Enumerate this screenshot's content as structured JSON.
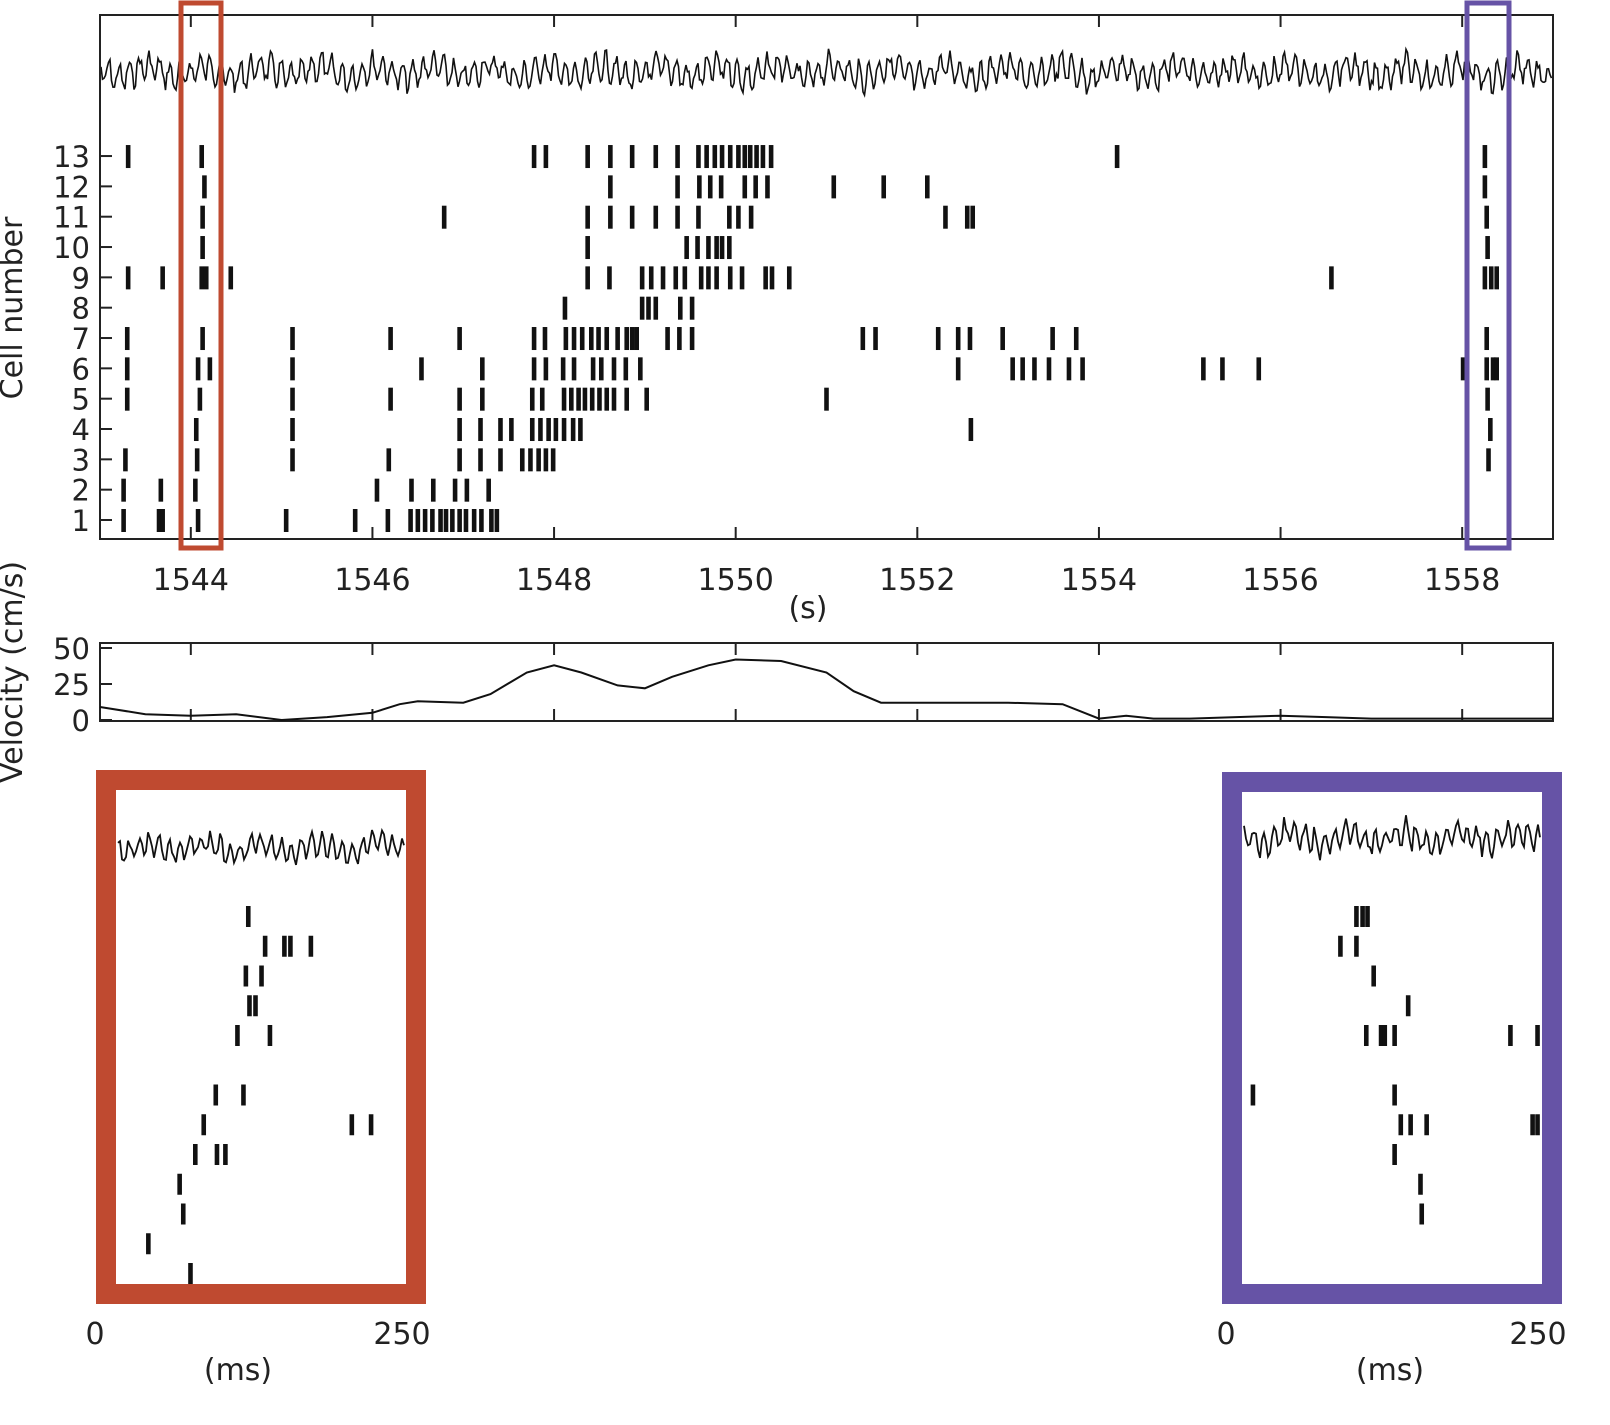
{
  "colors": {
    "red_window": "#bf4a30",
    "blue_window": "#6653a6",
    "ink": "#111111"
  },
  "chart_data": [
    {
      "type": "raster",
      "title": "",
      "ylabel": "Cell number",
      "xlabel": "(s)",
      "xlim": [
        1543,
        1559
      ],
      "xticks": [
        "1544",
        "1546",
        "1548",
        "1550",
        "1552",
        "1554",
        "1556",
        "1558"
      ],
      "yticks": [
        "1",
        "2",
        "3",
        "4",
        "5",
        "6",
        "7",
        "8",
        "9",
        "10",
        "11",
        "12",
        "13"
      ],
      "highlight_windows": [
        {
          "color": "red",
          "t_start": 1543.9,
          "t_end": 1544.35
        },
        {
          "color": "blue",
          "t_start": 1558.05,
          "t_end": 1558.5
        }
      ],
      "spikes": {
        "13": [
          1543.31,
          1544.12,
          1547.78,
          1547.91,
          1548.37,
          1548.62,
          1548.86,
          1549.12,
          1549.36,
          1549.59,
          1549.68,
          1549.77,
          1549.85,
          1549.94,
          1550.03,
          1550.1,
          1550.16,
          1550.23,
          1550.3,
          1550.39,
          1554.2,
          1558.25
        ],
        "12": [
          1544.15,
          1548.62,
          1549.36,
          1549.6,
          1549.72,
          1549.84,
          1550.1,
          1550.22,
          1550.35,
          1551.08,
          1551.63,
          1552.11,
          1558.25
        ],
        "11": [
          1544.13,
          1546.79,
          1548.37,
          1548.62,
          1548.86,
          1549.12,
          1549.36,
          1549.59,
          1549.93,
          1550.03,
          1550.17,
          1552.31,
          1552.55,
          1552.61,
          1558.27
        ],
        "10": [
          1544.13,
          1548.37,
          1549.46,
          1549.58,
          1549.7,
          1549.79,
          1549.85,
          1549.93,
          1558.28
        ],
        "9": [
          1543.31,
          1543.69,
          1544.12,
          1544.17,
          1544.44,
          1548.37,
          1548.61,
          1548.97,
          1549.07,
          1549.2,
          1549.34,
          1549.44,
          1549.62,
          1549.7,
          1549.79,
          1549.94,
          1550.07,
          1550.33,
          1550.4,
          1550.59,
          1556.56,
          1558.25,
          1558.32,
          1558.38
        ],
        "8": [
          1548.12,
          1548.97,
          1549.04,
          1549.12,
          1549.39,
          1549.52
        ],
        "7": [
          1543.3,
          1544.13,
          1545.12,
          1546.2,
          1546.96,
          1547.78,
          1547.9,
          1548.13,
          1548.22,
          1548.31,
          1548.41,
          1548.49,
          1548.58,
          1548.7,
          1548.8,
          1548.86,
          1548.91,
          1549.25,
          1549.38,
          1549.52,
          1551.4,
          1551.54,
          1552.23,
          1552.45,
          1552.58,
          1552.94,
          1553.49,
          1553.75,
          1558.27
        ],
        "6": [
          1543.3,
          1544.08,
          1544.21,
          1545.12,
          1546.54,
          1547.21,
          1547.78,
          1547.91,
          1548.1,
          1548.22,
          1548.43,
          1548.52,
          1548.66,
          1548.79,
          1548.95,
          1552.45,
          1553.05,
          1553.16,
          1553.29,
          1553.45,
          1553.67,
          1553.82,
          1555.15,
          1555.36,
          1555.76,
          1558.01,
          1558.27,
          1558.34,
          1558.38
        ],
        "5": [
          1543.3,
          1544.1,
          1545.12,
          1546.2,
          1546.96,
          1547.21,
          1547.76,
          1547.87,
          1548.11,
          1548.19,
          1548.27,
          1548.34,
          1548.42,
          1548.5,
          1548.58,
          1548.66,
          1548.8,
          1549.02,
          1551.0,
          1558.28
        ],
        "4": [
          1544.06,
          1545.12,
          1546.96,
          1547.19,
          1547.41,
          1547.53,
          1547.76,
          1547.85,
          1547.94,
          1548.02,
          1548.11,
          1548.21,
          1548.29,
          1552.59,
          1558.31
        ],
        "3": [
          1543.28,
          1544.07,
          1545.12,
          1546.18,
          1546.96,
          1547.19,
          1547.41,
          1547.65,
          1547.74,
          1547.83,
          1547.91,
          1547.99,
          1558.29
        ],
        "2": [
          1543.26,
          1543.67,
          1544.05,
          1546.05,
          1546.43,
          1546.67,
          1546.91,
          1547.04,
          1547.28
        ],
        "1": [
          1543.26,
          1543.65,
          1543.69,
          1544.08,
          1545.05,
          1545.81,
          1546.17,
          1546.42,
          1546.5,
          1546.58,
          1546.66,
          1546.75,
          1546.81,
          1546.88,
          1546.96,
          1547.03,
          1547.12,
          1547.2,
          1547.31,
          1547.37
        ]
      }
    },
    {
      "type": "line",
      "ylabel": "Velocity (cm/s)",
      "xlim": [
        1543,
        1559
      ],
      "ylim": [
        0,
        50
      ],
      "yticks": [
        "0",
        "25",
        "50"
      ],
      "x": [
        1543,
        1543.5,
        1544,
        1544.5,
        1545,
        1545.5,
        1546,
        1546.3,
        1546.5,
        1547,
        1547.3,
        1547.7,
        1548,
        1548.3,
        1548.7,
        1549,
        1549.3,
        1549.7,
        1550,
        1550.5,
        1551,
        1551.3,
        1551.6,
        1552,
        1553,
        1553.6,
        1554,
        1554.3,
        1554.6,
        1555,
        1556,
        1556.5,
        1557,
        1558,
        1559
      ],
      "y": [
        9,
        4,
        3,
        4,
        0,
        2,
        5,
        11,
        13,
        12,
        18,
        33,
        38,
        33,
        24,
        22,
        30,
        38,
        42,
        41,
        33,
        20,
        12,
        12,
        12,
        11,
        1,
        3,
        1,
        1,
        3,
        2,
        1,
        1,
        1
      ]
    },
    {
      "type": "raster",
      "window": "red",
      "xlabel": "(ms)",
      "xlim": [
        0,
        250
      ],
      "xticks": [
        "0",
        "250"
      ],
      "spikes": {
        "13": [
          119
        ],
        "12": [
          133,
          149,
          154,
          171
        ],
        "11": [
          117,
          130
        ],
        "10": [
          120,
          125
        ],
        "9": [
          110,
          137
        ],
        "8": [],
        "7": [
          92,
          115
        ],
        "6": [
          82,
          205,
          221
        ],
        "5": [
          75,
          93,
          100
        ],
        "4": [
          62
        ],
        "3": [
          65
        ],
        "2": [
          36
        ],
        "1": [
          71
        ]
      }
    },
    {
      "type": "raster",
      "window": "blue",
      "xlabel": "(ms)",
      "xlim": [
        0,
        250
      ],
      "xticks": [
        "0",
        "250"
      ],
      "spikes": {
        "13": [
          101,
          106,
          110
        ],
        "12": [
          88,
          101
        ],
        "11": [
          115
        ],
        "10": [
          143
        ],
        "9": [
          109,
          121,
          124,
          132,
          226,
          248
        ],
        "8": [],
        "7": [
          17,
          132
        ],
        "6": [
          137,
          145,
          158,
          244,
          248
        ],
        "5": [
          132
        ],
        "4": [
          153
        ],
        "3": [
          154
        ],
        "2": [],
        "1": []
      }
    }
  ]
}
